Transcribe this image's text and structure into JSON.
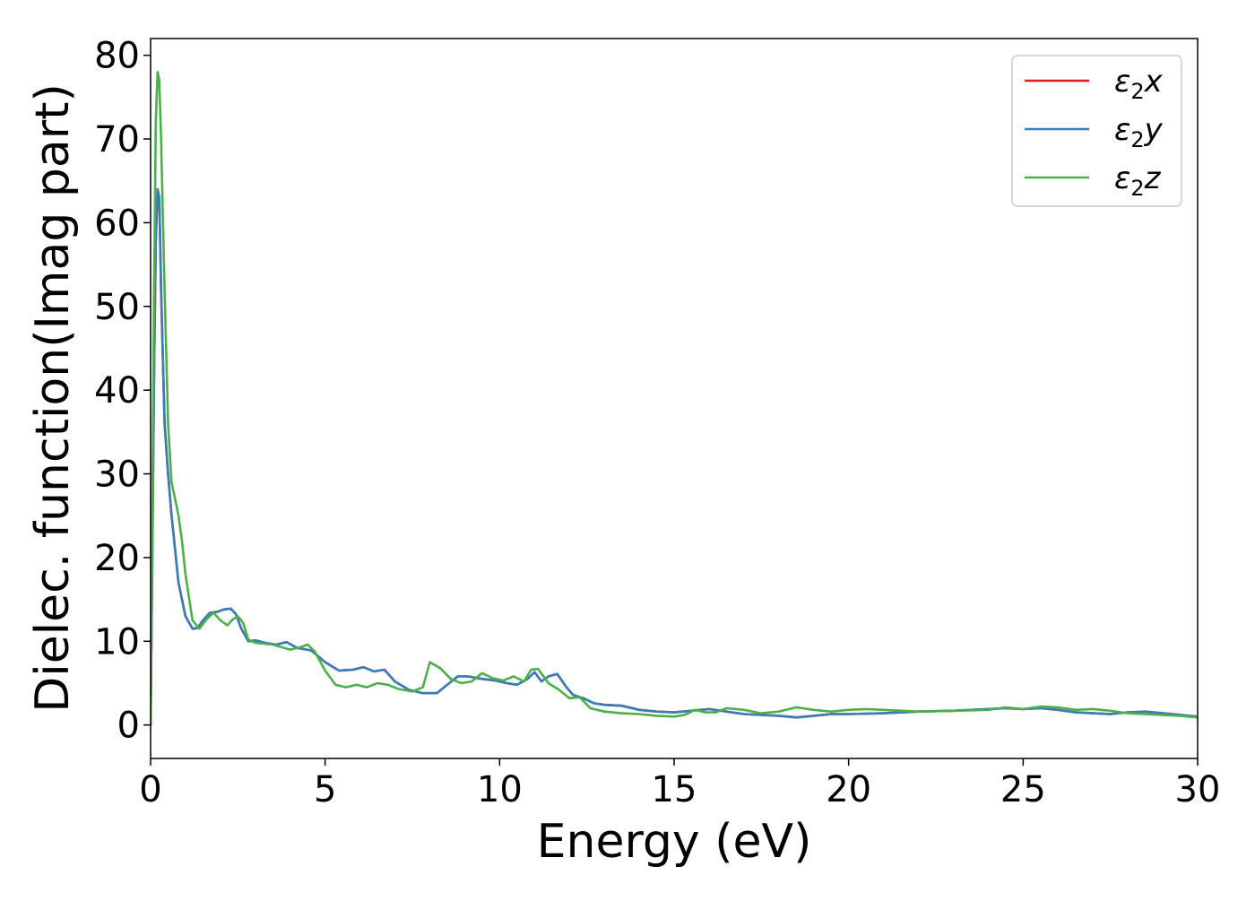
{
  "chart_data": {
    "type": "line",
    "title": "",
    "xlabel": "Energy (eV)",
    "ylabel": "Dielec. function(Imag part)",
    "xlim": [
      0,
      30
    ],
    "ylim": [
      -4,
      82
    ],
    "xticks": [
      0,
      5,
      10,
      15,
      20,
      25,
      30
    ],
    "yticks": [
      0,
      10,
      20,
      30,
      40,
      50,
      60,
      70,
      80
    ],
    "grid": false,
    "legend_position": "top-right",
    "series": [
      {
        "name": "ε2x",
        "legend_base": "ε",
        "legend_sub": "2",
        "legend_suffix": "x",
        "color": "#e41a1c",
        "x": [
          0,
          0.05,
          0.1,
          0.15,
          0.2,
          0.25,
          0.3,
          0.4,
          0.5,
          0.6,
          0.7,
          0.8,
          1.0,
          1.2,
          1.35,
          1.5,
          1.7,
          1.9,
          2.1,
          2.3,
          2.45,
          2.6,
          2.8,
          3.0,
          3.3,
          3.6,
          3.9,
          4.2,
          4.6,
          5.0,
          5.4,
          5.8,
          6.1,
          6.4,
          6.7,
          7.0,
          7.4,
          7.8,
          8.2,
          8.5,
          8.8,
          9.1,
          9.5,
          9.9,
          10.2,
          10.5,
          10.8,
          11.0,
          11.2,
          11.4,
          11.65,
          11.9,
          12.1,
          12.4,
          12.7,
          13.0,
          13.5,
          14.0,
          14.5,
          15.0,
          15.5,
          16.0,
          16.5,
          17.0,
          17.5,
          18.0,
          18.5,
          19.0,
          19.5,
          20.0,
          21.0,
          22.0,
          23.0,
          24.0,
          24.5,
          25.0,
          25.5,
          26.0,
          26.5,
          27.0,
          27.5,
          28.0,
          28.5,
          29.0,
          29.5,
          30.0
        ],
        "y": [
          0,
          20,
          42,
          58,
          64,
          63,
          52,
          36,
          30,
          25,
          21,
          17,
          13,
          11.5,
          11.6,
          12.5,
          13.4,
          13.5,
          13.8,
          13.9,
          13.2,
          11.5,
          10,
          10.1,
          9.8,
          9.6,
          9.9,
          9.2,
          8.9,
          7.5,
          6.5,
          6.6,
          6.9,
          6.4,
          6.6,
          5.2,
          4.2,
          3.8,
          3.8,
          4.8,
          5.8,
          5.8,
          5.5,
          5.3,
          5.0,
          4.8,
          5.5,
          6.3,
          5.2,
          5.8,
          6.1,
          4.6,
          3.6,
          3.2,
          2.6,
          2.4,
          2.3,
          1.8,
          1.6,
          1.5,
          1.7,
          1.9,
          1.6,
          1.3,
          1.2,
          1.1,
          0.9,
          1.1,
          1.3,
          1.3,
          1.4,
          1.6,
          1.7,
          1.9,
          2.0,
          1.9,
          2.0,
          1.8,
          1.5,
          1.4,
          1.3,
          1.5,
          1.6,
          1.4,
          1.2,
          1.0
        ]
      },
      {
        "name": "ε2y",
        "legend_base": "ε",
        "legend_sub": "2",
        "legend_suffix": "y",
        "color": "#377eb8",
        "x": [
          0,
          0.05,
          0.1,
          0.15,
          0.2,
          0.25,
          0.3,
          0.4,
          0.5,
          0.6,
          0.7,
          0.8,
          1.0,
          1.2,
          1.35,
          1.5,
          1.7,
          1.9,
          2.1,
          2.3,
          2.45,
          2.6,
          2.8,
          3.0,
          3.3,
          3.6,
          3.9,
          4.2,
          4.6,
          5.0,
          5.4,
          5.8,
          6.1,
          6.4,
          6.7,
          7.0,
          7.4,
          7.8,
          8.2,
          8.5,
          8.8,
          9.1,
          9.5,
          9.9,
          10.2,
          10.5,
          10.8,
          11.0,
          11.2,
          11.4,
          11.65,
          11.9,
          12.1,
          12.4,
          12.7,
          13.0,
          13.5,
          14.0,
          14.5,
          15.0,
          15.5,
          16.0,
          16.5,
          17.0,
          17.5,
          18.0,
          18.5,
          19.0,
          19.5,
          20.0,
          21.0,
          22.0,
          23.0,
          24.0,
          24.5,
          25.0,
          25.5,
          26.0,
          26.5,
          27.0,
          27.5,
          28.0,
          28.5,
          29.0,
          29.5,
          30.0
        ],
        "y": [
          0,
          20,
          42,
          58,
          64,
          63,
          52,
          36,
          30,
          25,
          21,
          17,
          13,
          11.5,
          11.6,
          12.5,
          13.4,
          13.5,
          13.8,
          13.9,
          13.2,
          11.5,
          10,
          10.1,
          9.8,
          9.6,
          9.9,
          9.2,
          8.9,
          7.5,
          6.5,
          6.6,
          6.9,
          6.4,
          6.6,
          5.2,
          4.2,
          3.8,
          3.8,
          4.8,
          5.8,
          5.8,
          5.5,
          5.3,
          5.0,
          4.8,
          5.5,
          6.3,
          5.2,
          5.8,
          6.1,
          4.6,
          3.6,
          3.2,
          2.6,
          2.4,
          2.3,
          1.8,
          1.6,
          1.5,
          1.7,
          1.9,
          1.6,
          1.3,
          1.2,
          1.1,
          0.9,
          1.1,
          1.3,
          1.3,
          1.4,
          1.6,
          1.7,
          1.9,
          2.0,
          1.9,
          2.0,
          1.8,
          1.5,
          1.4,
          1.3,
          1.5,
          1.6,
          1.4,
          1.2,
          1.0
        ]
      },
      {
        "name": "ε2z",
        "legend_base": "ε",
        "legend_sub": "2",
        "legend_suffix": "z",
        "color": "#4daf4a",
        "x": [
          0,
          0.05,
          0.1,
          0.15,
          0.2,
          0.25,
          0.3,
          0.4,
          0.5,
          0.6,
          0.7,
          0.8,
          0.9,
          1.0,
          1.2,
          1.4,
          1.6,
          1.8,
          2.0,
          2.2,
          2.35,
          2.5,
          2.65,
          2.8,
          3.0,
          3.5,
          4.0,
          4.3,
          4.5,
          4.7,
          5.0,
          5.3,
          5.6,
          5.9,
          6.2,
          6.5,
          6.8,
          7.1,
          7.5,
          7.8,
          8.0,
          8.3,
          8.6,
          8.9,
          9.2,
          9.5,
          9.8,
          10.1,
          10.4,
          10.7,
          10.9,
          11.1,
          11.4,
          11.7,
          12.0,
          12.3,
          12.6,
          13.0,
          13.5,
          14.0,
          14.5,
          15.0,
          15.3,
          15.6,
          15.9,
          16.2,
          16.5,
          17.0,
          17.5,
          18.0,
          18.5,
          19.0,
          19.5,
          20.0,
          20.5,
          21.0,
          22.0,
          23.0,
          24.0,
          24.5,
          25.0,
          25.5,
          26.0,
          26.5,
          27.0,
          27.5,
          28.0,
          28.5,
          29.0,
          29.5,
          30.0
        ],
        "y": [
          0,
          25,
          52,
          72,
          78,
          77,
          70,
          52,
          36,
          29,
          27,
          25,
          22,
          18,
          12.5,
          11.5,
          12.6,
          13.4,
          12.5,
          11.9,
          12.6,
          13.0,
          12.2,
          10.2,
          9.8,
          9.6,
          9.0,
          9.3,
          9.6,
          8.8,
          6.5,
          4.8,
          4.5,
          4.8,
          4.5,
          5.0,
          4.8,
          4.3,
          4.0,
          4.5,
          7.5,
          6.8,
          5.5,
          5.0,
          5.2,
          6.2,
          5.6,
          5.3,
          5.8,
          5.2,
          6.6,
          6.7,
          5.0,
          4.2,
          3.2,
          3.3,
          2.0,
          1.6,
          1.4,
          1.3,
          1.1,
          1.0,
          1.2,
          1.8,
          1.5,
          1.5,
          2.0,
          1.8,
          1.4,
          1.6,
          2.1,
          1.8,
          1.6,
          1.8,
          1.9,
          1.8,
          1.6,
          1.7,
          1.8,
          2.1,
          1.9,
          2.2,
          2.1,
          1.8,
          1.9,
          1.7,
          1.4,
          1.3,
          1.2,
          1.1,
          0.9
        ]
      }
    ]
  }
}
